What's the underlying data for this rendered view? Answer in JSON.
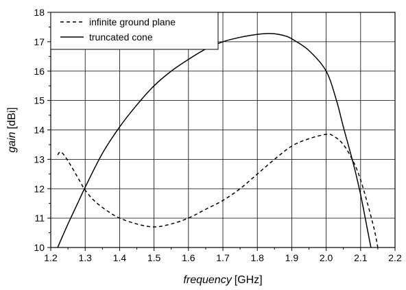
{
  "chart_data": {
    "type": "line",
    "xlabel": {
      "italic": "frequency",
      "unit": "[GHz]"
    },
    "ylabel": {
      "italic": "gain",
      "unit": "[dBi]"
    },
    "xlim": [
      1.2,
      2.2
    ],
    "ylim": [
      10,
      18
    ],
    "xticks": [
      "1.2",
      "1.3",
      "1.4",
      "1.5",
      "1.6",
      "1.7",
      "1.8",
      "1.9",
      "2.0",
      "2.1",
      "2.2"
    ],
    "yticks": [
      "10",
      "11",
      "12",
      "13",
      "14",
      "15",
      "16",
      "17",
      "18"
    ],
    "grid": true,
    "legend_position": "top-left",
    "series": [
      {
        "name": "infinite ground plane",
        "style": "dashed",
        "color": "#000000",
        "x": [
          1.22,
          1.23,
          1.25,
          1.28,
          1.3,
          1.33,
          1.37,
          1.4,
          1.45,
          1.5,
          1.55,
          1.6,
          1.65,
          1.7,
          1.75,
          1.8,
          1.85,
          1.9,
          1.95,
          2.0,
          2.02,
          2.05,
          2.08,
          2.1,
          2.12,
          2.14,
          2.15
        ],
        "y": [
          13.15,
          13.25,
          12.95,
          12.35,
          11.95,
          11.55,
          11.2,
          11.0,
          10.8,
          10.7,
          10.8,
          11.0,
          11.3,
          11.6,
          12.0,
          12.5,
          13.0,
          13.45,
          13.7,
          13.85,
          13.8,
          13.5,
          12.9,
          12.3,
          11.5,
          10.6,
          10.0
        ]
      },
      {
        "name": "truncated cone",
        "style": "solid",
        "color": "#000000",
        "x": [
          1.22,
          1.25,
          1.28,
          1.3,
          1.35,
          1.4,
          1.45,
          1.5,
          1.55,
          1.6,
          1.65,
          1.7,
          1.75,
          1.8,
          1.83,
          1.85,
          1.88,
          1.9,
          1.95,
          2.0,
          2.03,
          2.05,
          2.08,
          2.1,
          2.12,
          2.13
        ],
        "y": [
          10.0,
          10.8,
          11.55,
          12.05,
          13.2,
          14.1,
          14.85,
          15.5,
          16.0,
          16.4,
          16.75,
          17.0,
          17.15,
          17.25,
          17.28,
          17.27,
          17.2,
          17.1,
          16.7,
          16.0,
          15.0,
          14.1,
          12.8,
          11.8,
          10.6,
          10.0
        ]
      }
    ]
  }
}
